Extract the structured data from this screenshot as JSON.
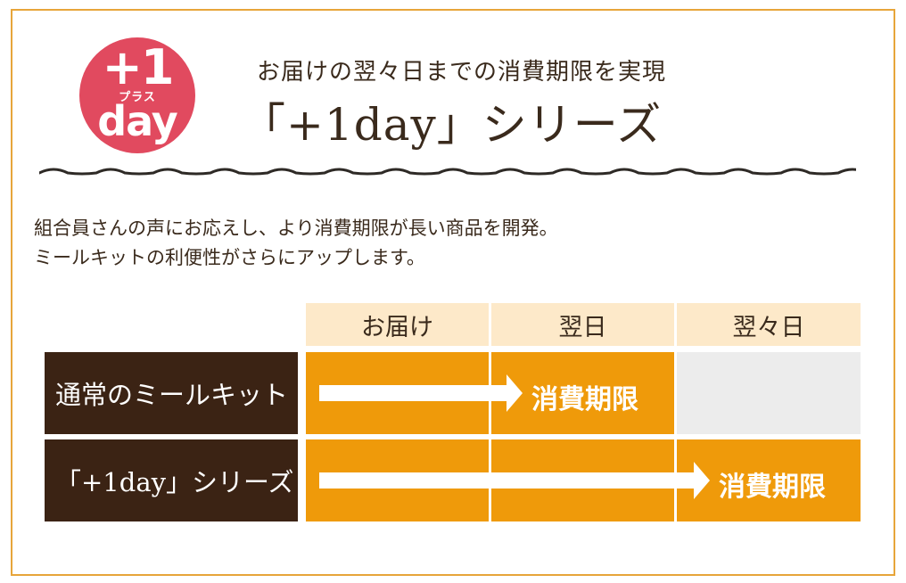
{
  "badge": {
    "big": "+1",
    "kana": "プラス",
    "day": "day"
  },
  "header": {
    "subtitle": "お届けの翌々日までの消費期限を実現",
    "title": "「+1day」シリーズ"
  },
  "description": {
    "line1": "組合員さんの声にお応えし、より消費期限が長い商品を開発。",
    "line2": "ミールキットの利便性がさらにアップします。"
  },
  "table": {
    "columns": [
      "お届け",
      "翌日",
      "翌々日"
    ],
    "rows": [
      {
        "label": "通常のミールキット",
        "expiry_label": "消費期限",
        "expiry_column": "翌日"
      },
      {
        "label": "「+1day」シリーズ",
        "expiry_label": "消費期限",
        "expiry_column": "翌々日"
      }
    ]
  },
  "colors": {
    "border": "#e7a53a",
    "badge": "#e14a5f",
    "header_bg": "#fde9c9",
    "row_label_bg": "#3b2314",
    "bar": "#ef9a0a",
    "empty": "#ececec"
  }
}
